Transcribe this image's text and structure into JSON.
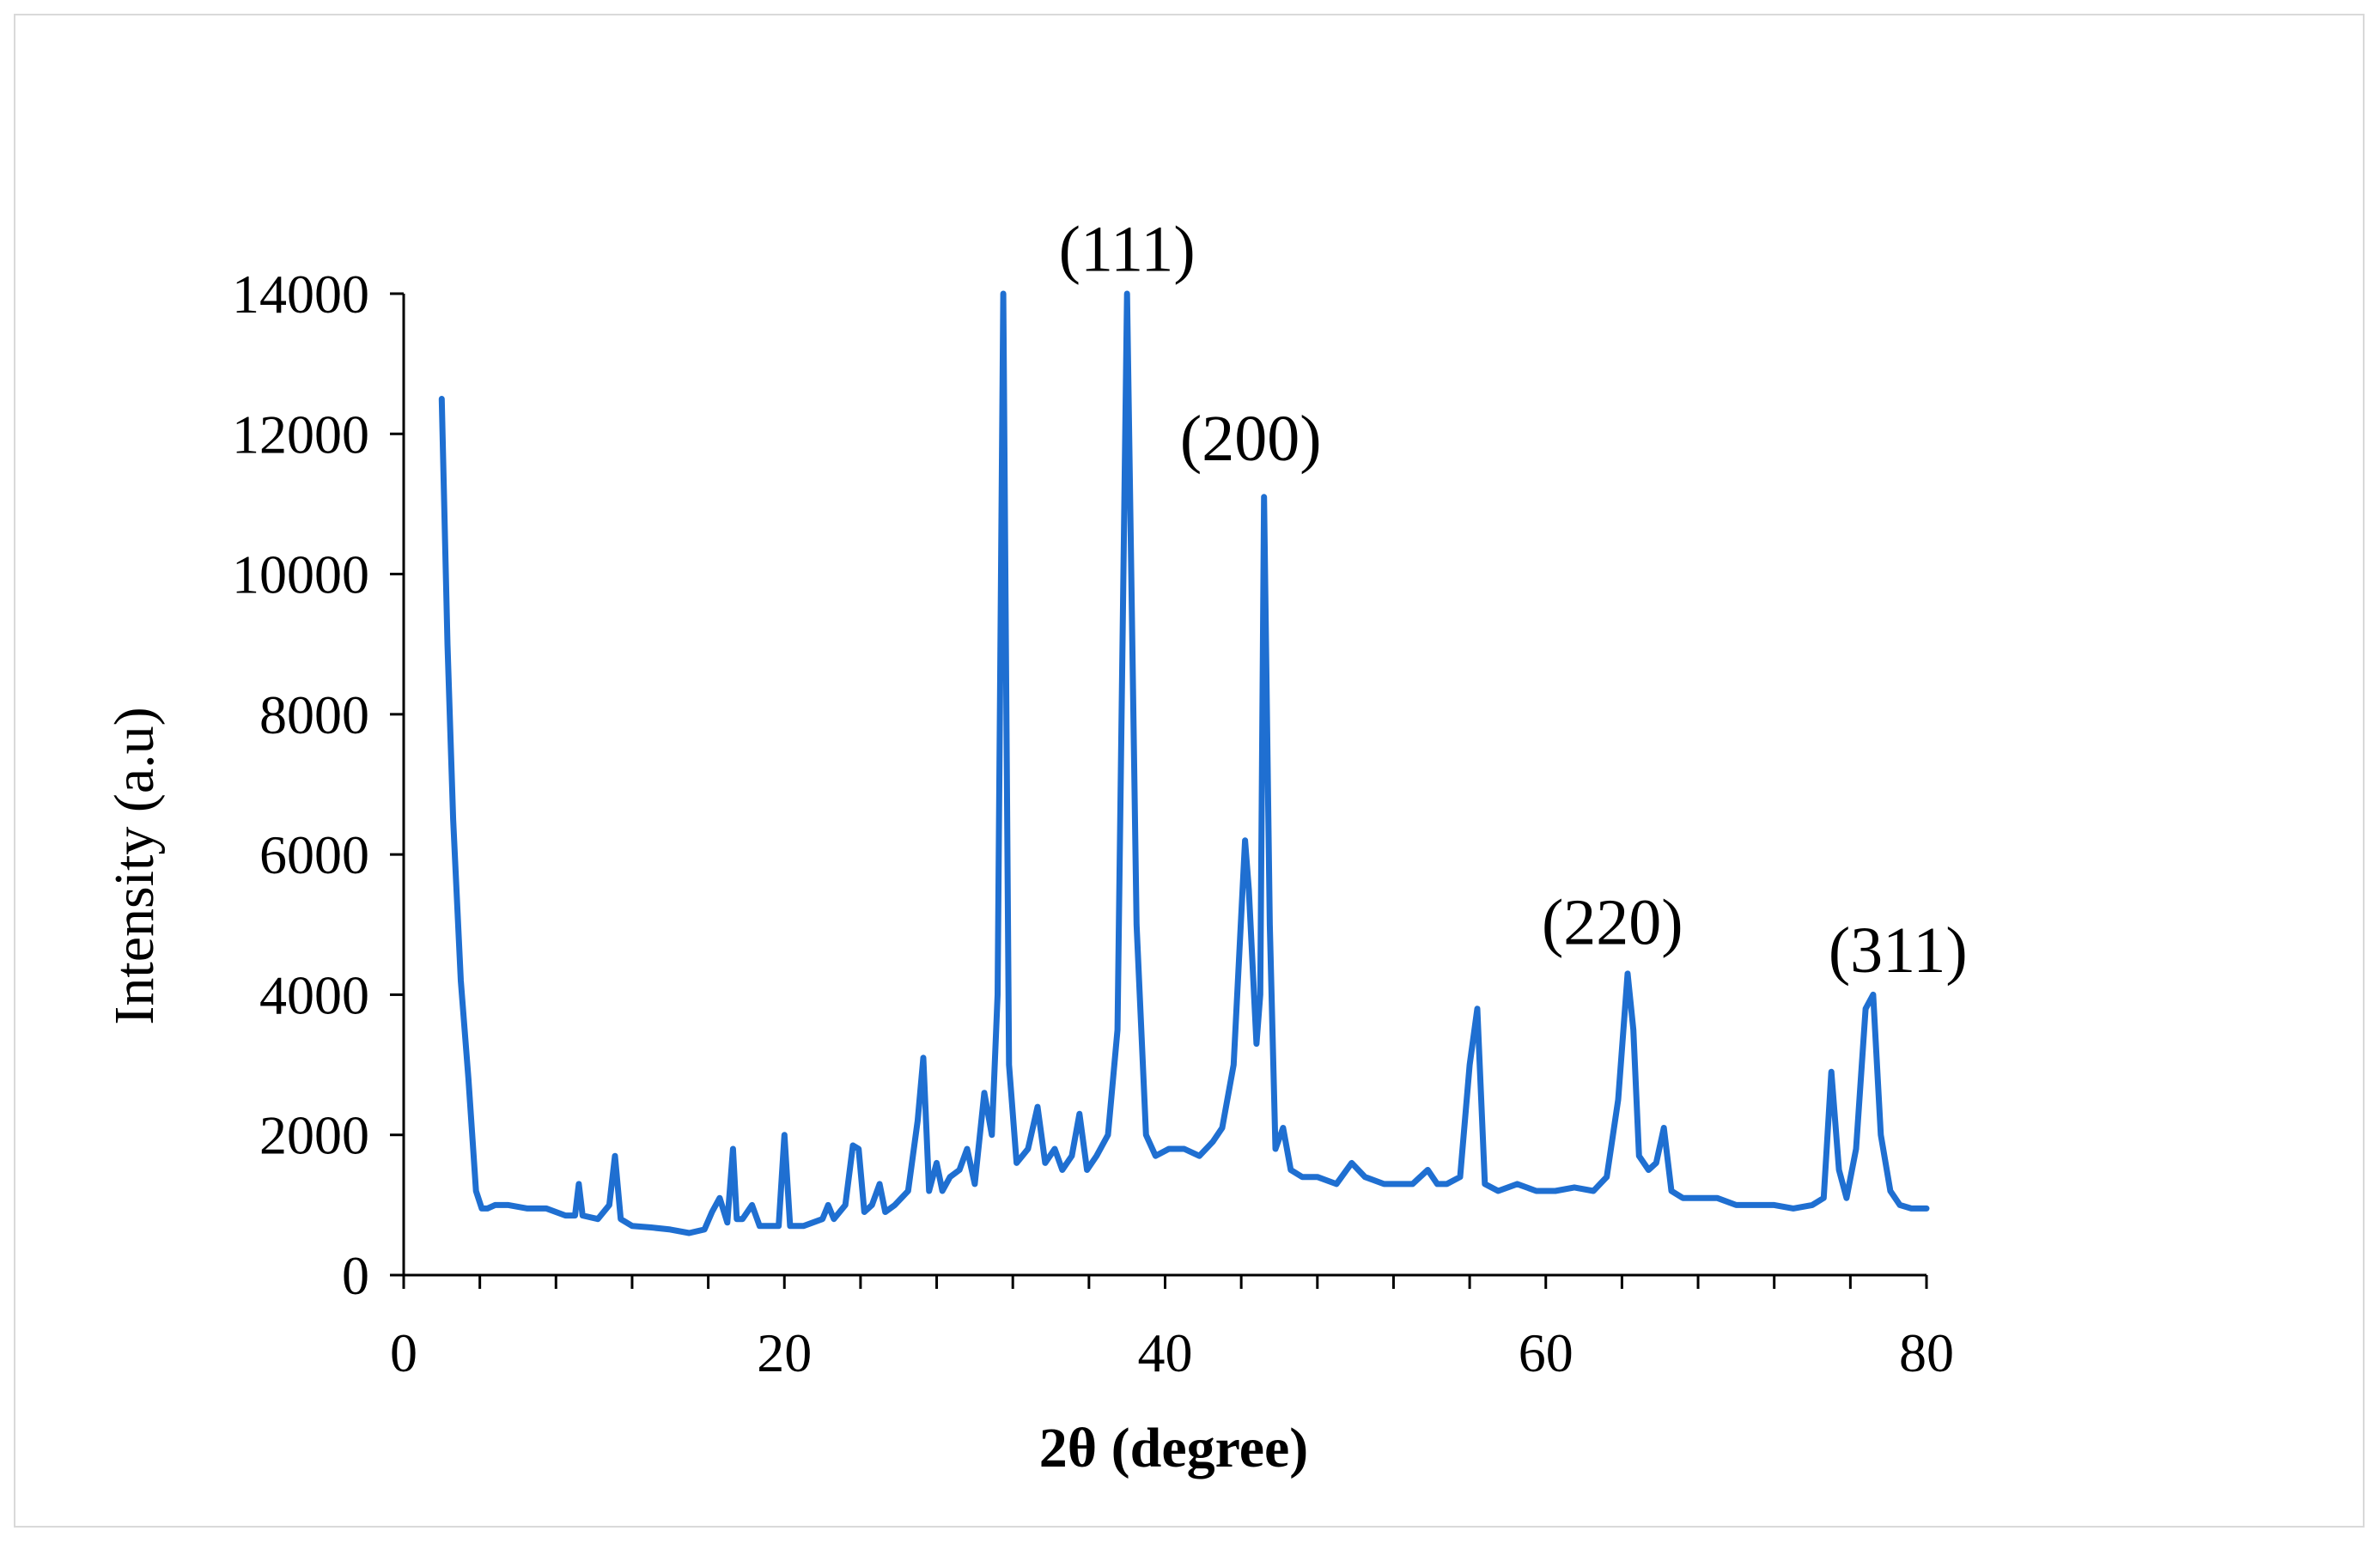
{
  "chart_data": {
    "type": "line",
    "title": "",
    "xlabel": "2θ (degree)",
    "ylabel": "Intensity (a.u)",
    "xlim": [
      0,
      80
    ],
    "ylim": [
      0,
      14000
    ],
    "x_ticks": [
      "0",
      "20",
      "40",
      "60",
      "80"
    ],
    "x_tick_values": [
      0,
      20,
      40,
      60,
      80
    ],
    "x_minor_step": 4,
    "y_ticks": [
      "0",
      "2000",
      "4000",
      "6000",
      "8000",
      "10000",
      "12000",
      "14000"
    ],
    "y_tick_values": [
      0,
      2000,
      4000,
      6000,
      8000,
      10000,
      12000,
      14000
    ],
    "grid": false,
    "legend": "none",
    "color": "#1f6fd1",
    "annotations": [
      {
        "text": "(111)",
        "x": 38.0,
        "y": 14200
      },
      {
        "text": "(200)",
        "x": 44.5,
        "y": 11500
      },
      {
        "text": "(220)",
        "x": 63.5,
        "y": 4600
      },
      {
        "text": "(311)",
        "x": 78.5,
        "y": 4200
      }
    ],
    "series": [
      {
        "x": [
          2,
          2.3,
          2.6,
          3.0,
          3.4,
          3.8,
          4.1,
          4.4,
          4.8,
          5.5,
          6.5,
          7.5,
          8.5,
          9.0,
          9.2,
          9.4,
          10.2,
          10.8,
          11.1,
          11.4,
          12,
          13,
          14,
          15,
          15.8,
          16.2,
          16.6,
          17.0,
          17.3,
          17.5,
          17.8,
          18.3,
          18.7,
          19.2,
          19.7,
          20.0,
          20.3,
          21,
          22,
          22.3,
          22.6,
          23.2,
          23.6,
          23.9,
          24.2,
          24.6,
          25.0,
          25.3,
          25.8,
          26.5,
          27.0,
          27.3,
          27.6,
          28.0,
          28.3,
          28.7,
          29.2,
          29.6,
          30.0,
          30.5,
          30.9,
          31.2,
          31.5,
          31.8,
          32.2,
          32.8,
          33.3,
          33.7,
          34.2,
          34.6,
          35.1,
          35.5,
          35.9,
          36.4,
          37.0,
          37.5,
          38.0,
          38.5,
          39.0,
          39.5,
          40.2,
          41.0,
          41.8,
          42.5,
          43.0,
          43.6,
          44.2,
          44.4,
          44.8,
          45.0,
          45.2,
          45.5,
          45.8,
          46.2,
          46.6,
          47.2,
          48,
          49,
          49.8,
          50.5,
          51.5,
          53,
          53.8,
          54.3,
          54.8,
          55.5,
          56.0,
          56.4,
          56.8,
          57.5,
          58.5,
          59.5,
          60.5,
          61.5,
          62.5,
          63.2,
          63.8,
          64.3,
          64.6,
          64.9,
          65.4,
          65.8,
          66.2,
          66.6,
          67.2,
          68,
          69,
          70,
          71,
          72,
          73,
          74,
          74.6,
          75.0,
          75.4,
          75.8,
          76.3,
          76.8,
          77.2,
          77.6,
          78.1,
          78.6,
          79.2,
          80
        ],
        "values": [
          12500,
          9000,
          6500,
          4200,
          2800,
          1200,
          950,
          950,
          1000,
          1000,
          950,
          950,
          850,
          850,
          1300,
          850,
          800,
          1000,
          1700,
          800,
          700,
          680,
          650,
          600,
          650,
          900,
          1100,
          750,
          1800,
          800,
          800,
          1000,
          700,
          700,
          700,
          2000,
          700,
          700,
          800,
          1000,
          800,
          1000,
          1850,
          1800,
          900,
          1000,
          1300,
          900,
          1000,
          1200,
          2200,
          3100,
          1200,
          1600,
          1200,
          1400,
          1500,
          1800,
          1300,
          2600,
          2000,
          4000,
          14000,
          3000,
          1600,
          1800,
          2400,
          1600,
          1800,
          1500,
          1700,
          2300,
          1500,
          1700,
          2000,
          3500,
          14000,
          5000,
          2000,
          1700,
          1800,
          1800,
          1700,
          1900,
          2100,
          3000,
          6200,
          5500,
          3300,
          4000,
          11100,
          5000,
          1800,
          2100,
          1500,
          1400,
          1400,
          1300,
          1600,
          1400,
          1300,
          1300,
          1500,
          1300,
          1300,
          1400,
          3000,
          3800,
          1300,
          1200,
          1300,
          1200,
          1200,
          1250,
          1200,
          1400,
          2500,
          4300,
          3500,
          1700,
          1500,
          1600,
          2100,
          1200,
          1100,
          1100,
          1100,
          1000,
          1000,
          1000,
          950,
          1000,
          1100,
          2900,
          1500,
          1100,
          1800,
          3800,
          4000,
          2000,
          1200,
          1000,
          950,
          950
        ]
      }
    ]
  }
}
